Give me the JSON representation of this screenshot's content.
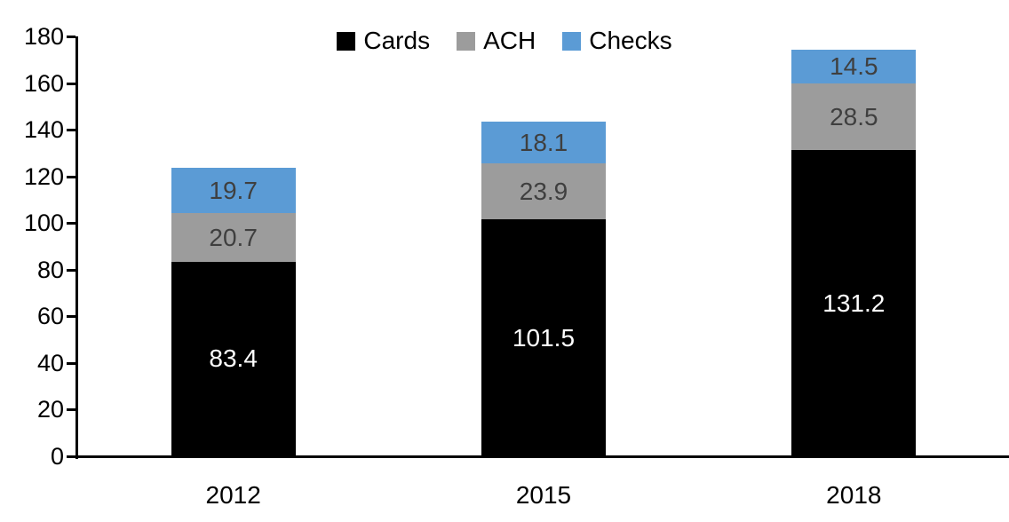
{
  "chart_data": {
    "type": "bar",
    "stacked": true,
    "title": "",
    "xlabel": "",
    "ylabel": "",
    "categories": [
      "2012",
      "2015",
      "2018"
    ],
    "series": [
      {
        "name": "Cards",
        "color": "#000000",
        "label_color": "#ffffff",
        "values": [
          83.4,
          101.5,
          131.2
        ]
      },
      {
        "name": "ACH",
        "color": "#9c9c9c",
        "label_color": "#3f3f3f",
        "values": [
          20.7,
          23.9,
          28.5
        ]
      },
      {
        "name": "Checks",
        "color": "#5b9bd5",
        "label_color": "#3f3f3f",
        "values": [
          19.7,
          18.1,
          14.5
        ]
      }
    ],
    "ylim": [
      0,
      180
    ],
    "yticks": [
      0,
      20,
      40,
      60,
      80,
      100,
      120,
      140,
      160,
      180
    ],
    "grid": false,
    "legend_position": "top-center",
    "axis_color": "#000000"
  }
}
